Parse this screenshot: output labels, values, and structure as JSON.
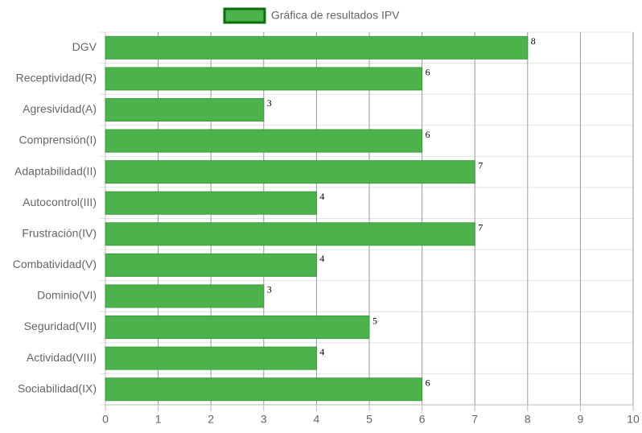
{
  "chart_data": {
    "type": "bar",
    "orientation": "horizontal",
    "categories": [
      "DGV",
      "Receptividad(R)",
      "Agresividad(A)",
      "Comprensión(I)",
      "Adaptabilidad(II)",
      "Autocontrol(III)",
      "Frustración(IV)",
      "Combatividad(V)",
      "Dominio(VI)",
      "Seguridad(VII)",
      "Actividad(VIII)",
      "Sociabilidad(IX)"
    ],
    "series": [
      {
        "name": "Gráfica de resultados IPV",
        "color": "#4cb34c",
        "values": [
          8,
          6,
          3,
          6,
          7,
          4,
          7,
          4,
          3,
          5,
          4,
          6
        ]
      }
    ],
    "xlim": [
      0,
      10
    ],
    "xticks": [
      0,
      1,
      2,
      3,
      4,
      5,
      6,
      7,
      8,
      9,
      10
    ],
    "grid": true,
    "legend": "top",
    "data_labels": true
  }
}
